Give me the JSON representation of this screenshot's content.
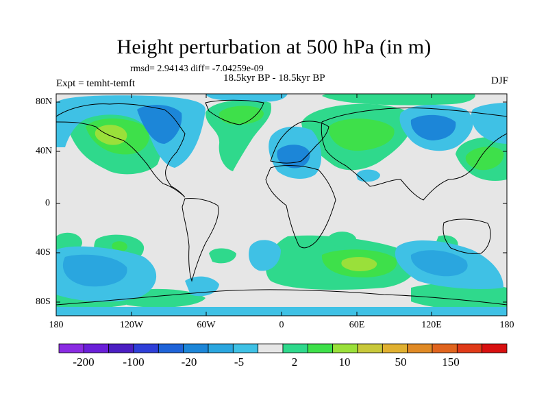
{
  "title": "Height perturbation at 500 hPa (in m)",
  "rmsd_line": "rmsd= 2.94143 diff= -7.04259e-09",
  "experiment": "Expt = temht-temft",
  "period": "18.5kyr BP - 18.5kyr BP",
  "season": "DJF",
  "lat_labels": [
    "80N",
    "40N",
    "0",
    "40S",
    "80S"
  ],
  "lon_labels": [
    "180",
    "120W",
    "60W",
    "0",
    "60E",
    "120E",
    "180"
  ],
  "colorbar": {
    "colors": [
      "#8a2be2",
      "#6a1fd8",
      "#4b1ec2",
      "#2f3fd8",
      "#1e63d8",
      "#1c86d8",
      "#2aa6df",
      "#3fc1e5",
      "#e6e6e6",
      "#2fd98c",
      "#3ee04a",
      "#9ae03a",
      "#c8c83a",
      "#e0b030",
      "#e08a25",
      "#e0641e",
      "#e03a18",
      "#d81010"
    ],
    "labels": [
      "-200",
      "-100",
      "-20",
      "-5",
      "2",
      "10",
      "50",
      "150"
    ]
  }
}
